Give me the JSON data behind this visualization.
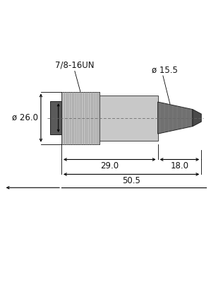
{
  "bg_color": "#ffffff",
  "colors": {
    "nut_face": "#5a5a5a",
    "nut_edge": "#222222",
    "thread_body": "#c0c0c0",
    "thread_rib": "#999999",
    "body_fill": "#c8c8c8",
    "body_edge": "#444444",
    "strain_fill": "#707070",
    "strain_edge": "#222222",
    "cable_fill": "#4a4a4a",
    "dim_line": "#000000",
    "center_line": "#666666",
    "text_color": "#111111"
  },
  "fontsize_label": 8.5,
  "fontsize_dim": 8.5,
  "labels": {
    "thread": "7/8-16UN",
    "dia_top": "ø 15.5",
    "dia_left": "ø 26.0",
    "dim1": "29.0",
    "dim2": "18.0",
    "dim3": "50.5"
  }
}
